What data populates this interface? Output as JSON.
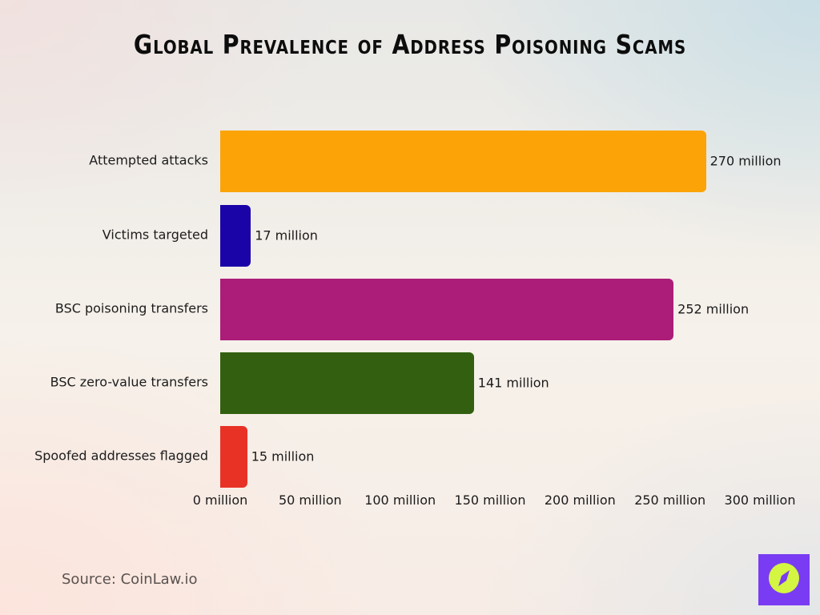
{
  "title": "Global Prevalence of Address Poisoning Scams",
  "source": "Source: CoinLaw.io",
  "logo": {
    "icon": "compass-icon",
    "bg_color": "#7a3cf2",
    "fg_color": "#d4f542"
  },
  "axis": {
    "ticks": [
      "0 million",
      "50 million",
      "100 million",
      "150 million",
      "200 million",
      "250 million",
      "300 million"
    ]
  },
  "bars": [
    {
      "label": "Attempted attacks",
      "value": 270,
      "value_label": "270 million",
      "color": "#fba307"
    },
    {
      "label": "Victims targeted",
      "value": 17,
      "value_label": "17 million",
      "color": "#1a04a8"
    },
    {
      "label": "BSC poisoning transfers",
      "value": 252,
      "value_label": "252 million",
      "color": "#ab1d78"
    },
    {
      "label": "BSC zero-value transfers",
      "value": 141,
      "value_label": "141 million",
      "color": "#326010"
    },
    {
      "label": "Spoofed addresses flagged",
      "value": 15,
      "value_label": "15 million",
      "color": "#e83226"
    }
  ],
  "chart_data": {
    "type": "bar",
    "orientation": "horizontal",
    "title": "Global Prevalence of Address Poisoning Scams",
    "categories": [
      "Attempted attacks",
      "Victims targeted",
      "BSC poisoning transfers",
      "BSC zero-value transfers",
      "Spoofed addresses flagged"
    ],
    "values": [
      270,
      17,
      252,
      141,
      15
    ],
    "data_labels": [
      "270 million",
      "17 million",
      "252 million",
      "141 million",
      "15 million"
    ],
    "colors": [
      "#fba307",
      "#1a04a8",
      "#ab1d78",
      "#326010",
      "#e83226"
    ],
    "xlabel": "",
    "ylabel": "",
    "unit": "million",
    "xlim": [
      0,
      300
    ],
    "xticks": [
      0,
      50,
      100,
      150,
      200,
      250,
      300
    ],
    "xtick_labels": [
      "0 million",
      "50 million",
      "100 million",
      "150 million",
      "200 million",
      "250 million",
      "300 million"
    ],
    "grid": false,
    "legend": null,
    "annotations": [
      "Source: CoinLaw.io"
    ]
  }
}
